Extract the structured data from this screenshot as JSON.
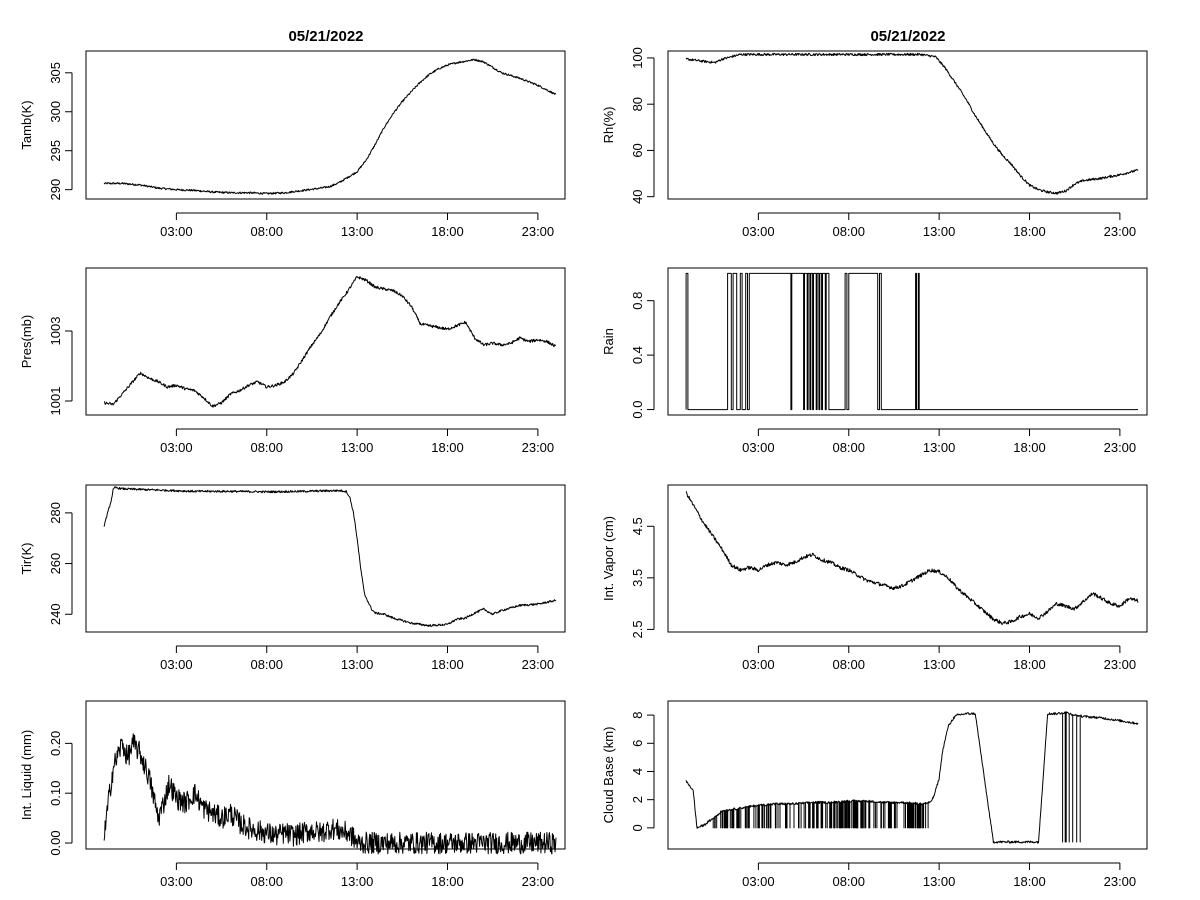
{
  "figure_titles": [
    "05/21/2022",
    "05/21/2022"
  ],
  "chart_data": [
    {
      "type": "line",
      "title": "05/21/2022",
      "xlabel": "",
      "ylabel": "Tamb(K)",
      "xlim": [
        -2,
        24.5
      ],
      "ylim": [
        288.8,
        307.8
      ],
      "xticks": [
        3,
        8,
        13,
        18,
        23
      ],
      "xtick_labels": [
        "03:00",
        "08:00",
        "13:00",
        "18:00",
        "23:00"
      ],
      "yticks": [
        290,
        295,
        300,
        305
      ],
      "ytick_labels": [
        "290",
        "295",
        "300",
        "305"
      ],
      "series": [
        {
          "x": [
            -1,
            0,
            1,
            2,
            3,
            4,
            5,
            6,
            7,
            8,
            9,
            10,
            11,
            11.5,
            12,
            12.5,
            13,
            13.5,
            14,
            14.5,
            15,
            15.5,
            16,
            16.5,
            17,
            17.5,
            18,
            18.5,
            19,
            19.5,
            20,
            20.5,
            21,
            22,
            23,
            24
          ],
          "y": [
            290.8,
            290.8,
            290.6,
            290.2,
            290.0,
            289.9,
            289.7,
            289.6,
            289.6,
            289.5,
            289.6,
            289.9,
            290.2,
            290.4,
            290.9,
            291.6,
            292.3,
            293.8,
            295.8,
            298.0,
            299.8,
            301.3,
            302.6,
            303.8,
            304.8,
            305.5,
            306.0,
            306.3,
            306.5,
            306.7,
            306.4,
            305.7,
            305.0,
            304.3,
            303.4,
            302.2
          ],
          "noise": 0.12
        }
      ]
    },
    {
      "type": "line",
      "title": "05/21/2022",
      "xlabel": "",
      "ylabel": "Rh(%)",
      "xlim": [
        -2,
        24.5
      ],
      "ylim": [
        39,
        103
      ],
      "xticks": [
        3,
        8,
        13,
        18,
        23
      ],
      "xtick_labels": [
        "03:00",
        "08:00",
        "13:00",
        "18:00",
        "23:00"
      ],
      "yticks": [
        40,
        60,
        80,
        100
      ],
      "ytick_labels": [
        "40",
        "60",
        "80",
        "100"
      ],
      "series": [
        {
          "x": [
            -1,
            0,
            0.6,
            1,
            2,
            3,
            6,
            9,
            12,
            12.8,
            13.3,
            14,
            14.5,
            15,
            15.5,
            16,
            16.5,
            17,
            17.5,
            18,
            18.5,
            19,
            19.5,
            20,
            20.5,
            21,
            22,
            23,
            24
          ],
          "y": [
            99.5,
            98.5,
            98.0,
            99.5,
            101.5,
            101.5,
            101.5,
            101.5,
            101.5,
            100.5,
            96,
            88,
            82,
            75,
            69,
            63,
            58,
            54,
            49,
            45,
            43,
            42,
            41.5,
            42.5,
            45.5,
            47,
            48,
            49.5,
            51.5
          ],
          "noise": 0.5
        }
      ]
    },
    {
      "type": "line",
      "title": "",
      "xlabel": "",
      "ylabel": "Pres(mb)",
      "xlim": [
        -2,
        24.5
      ],
      "ylim": [
        1000.6,
        1004.8
      ],
      "xticks": [
        3,
        8,
        13,
        18,
        23
      ],
      "xtick_labels": [
        "03:00",
        "08:00",
        "13:00",
        "18:00",
        "23:00"
      ],
      "yticks": [
        1001,
        1003
      ],
      "ytick_labels": [
        "1001",
        "1003"
      ],
      "series": [
        {
          "x": [
            -1,
            -0.5,
            0,
            0.5,
            1,
            1.5,
            2,
            2.5,
            3,
            3.5,
            4,
            4.5,
            5,
            5.5,
            6,
            6.5,
            7,
            7.5,
            8,
            8.5,
            9,
            9.5,
            10,
            10.5,
            11,
            11.5,
            12,
            12.5,
            13,
            13.5,
            14,
            14.5,
            15,
            15.5,
            16,
            16.5,
            17,
            17.5,
            18,
            18.5,
            19,
            19.5,
            20,
            20.5,
            21,
            21.5,
            22,
            22.5,
            23,
            23.5,
            24
          ],
          "y": [
            1000.95,
            1000.9,
            1001.2,
            1001.5,
            1001.8,
            1001.65,
            1001.55,
            1001.4,
            1001.45,
            1001.35,
            1001.3,
            1001.1,
            1000.85,
            1000.95,
            1001.2,
            1001.3,
            1001.45,
            1001.55,
            1001.4,
            1001.45,
            1001.55,
            1001.8,
            1002.2,
            1002.6,
            1002.95,
            1003.4,
            1003.8,
            1004.15,
            1004.55,
            1004.45,
            1004.25,
            1004.2,
            1004.15,
            1004.0,
            1003.7,
            1003.2,
            1003.15,
            1003.1,
            1003.05,
            1003.15,
            1003.25,
            1002.8,
            1002.6,
            1002.65,
            1002.6,
            1002.65,
            1002.8,
            1002.7,
            1002.75,
            1002.7,
            1002.55
          ],
          "noise": 0.04
        }
      ]
    },
    {
      "type": "line",
      "title": "",
      "xlabel": "",
      "ylabel": "Rain",
      "xlim": [
        -2,
        24.5
      ],
      "ylim": [
        -0.04,
        1.04
      ],
      "xticks": [
        3,
        8,
        13,
        18,
        23
      ],
      "xtick_labels": [
        "03:00",
        "08:00",
        "13:00",
        "18:00",
        "23:00"
      ],
      "yticks": [
        0.0,
        0.4,
        0.8
      ],
      "ytick_labels": [
        "0.0",
        "0.4",
        "0.8"
      ],
      "series": [
        {
          "step": true,
          "segments": [
            [
              -1.0,
              0
            ],
            [
              -1.0,
              1
            ],
            [
              -0.9,
              0
            ],
            [
              1.3,
              1
            ],
            [
              1.5,
              0
            ],
            [
              1.6,
              1
            ],
            [
              1.8,
              0
            ],
            [
              2.0,
              1
            ],
            [
              2.1,
              0
            ],
            [
              2.3,
              1
            ],
            [
              2.4,
              0
            ],
            [
              2.5,
              1
            ],
            [
              4.8,
              0
            ],
            [
              4.85,
              1
            ],
            [
              5.5,
              0
            ],
            [
              5.55,
              1
            ],
            [
              5.7,
              0
            ],
            [
              5.75,
              1
            ],
            [
              5.85,
              0
            ],
            [
              5.9,
              1
            ],
            [
              6.0,
              0
            ],
            [
              6.05,
              1
            ],
            [
              6.2,
              0
            ],
            [
              6.25,
              1
            ],
            [
              6.35,
              0
            ],
            [
              6.4,
              1
            ],
            [
              6.5,
              0
            ],
            [
              6.55,
              1
            ],
            [
              6.7,
              0
            ],
            [
              6.75,
              1
            ],
            [
              6.9,
              0
            ],
            [
              7.8,
              1
            ],
            [
              7.9,
              0
            ],
            [
              8.0,
              1
            ],
            [
              9.6,
              0
            ],
            [
              9.7,
              1
            ],
            [
              9.8,
              0
            ],
            [
              11.7,
              1
            ],
            [
              11.75,
              0
            ],
            [
              11.85,
              1
            ],
            [
              11.9,
              0
            ],
            [
              24.0,
              0
            ]
          ]
        }
      ]
    },
    {
      "type": "line",
      "title": "",
      "xlabel": "",
      "ylabel": "Tir(K)",
      "xlim": [
        -2,
        24.5
      ],
      "ylim": [
        233,
        291
      ],
      "xticks": [
        3,
        8,
        13,
        18,
        23
      ],
      "xtick_labels": [
        "03:00",
        "08:00",
        "13:00",
        "18:00",
        "23:00"
      ],
      "yticks": [
        240,
        260,
        280
      ],
      "ytick_labels": [
        "240",
        "260",
        "280"
      ],
      "series": [
        {
          "x": [
            -1,
            -0.8,
            -0.6,
            -0.5,
            -0.4,
            0,
            2,
            4,
            6,
            8,
            10,
            12,
            12.4,
            12.6,
            12.8,
            13,
            13.2,
            13.4,
            13.6,
            13.8,
            14,
            14.5,
            15,
            16,
            17,
            18,
            18.5,
            19,
            19.5,
            20,
            20.5,
            21,
            22,
            23,
            24
          ],
          "y": [
            275,
            280,
            285,
            289,
            290,
            289.5,
            289,
            288.5,
            288.5,
            288.3,
            288.5,
            288.8,
            288.5,
            286,
            280,
            270,
            258,
            248,
            245,
            242,
            240.5,
            240,
            238.5,
            236.5,
            235.5,
            236,
            238,
            238.5,
            240.5,
            242,
            240,
            241.5,
            243.5,
            244,
            245.5
          ],
          "noise": 0.4
        }
      ]
    },
    {
      "type": "line",
      "title": "",
      "xlabel": "",
      "ylabel": "Int. Vapor (cm)",
      "xlim": [
        -2,
        24.5
      ],
      "ylim": [
        2.45,
        5.3
      ],
      "xticks": [
        3,
        8,
        13,
        18,
        23
      ],
      "xtick_labels": [
        "03:00",
        "08:00",
        "13:00",
        "18:00",
        "23:00"
      ],
      "yticks": [
        2.5,
        3.5,
        4.5
      ],
      "ytick_labels": [
        "2.5",
        "3.5",
        "4.5"
      ],
      "series": [
        {
          "x": [
            -1,
            -0.5,
            0,
            0.5,
            1,
            1.5,
            2,
            2.5,
            3,
            3.5,
            4,
            4.5,
            5,
            5.5,
            6,
            6.5,
            7,
            7.5,
            8,
            8.5,
            9,
            9.5,
            10,
            10.5,
            11,
            11.5,
            12,
            12.5,
            13,
            13.5,
            14,
            14.5,
            15,
            15.5,
            16,
            16.5,
            17,
            17.5,
            18,
            18.5,
            19,
            19.5,
            20,
            20.5,
            21,
            21.5,
            22,
            22.5,
            23,
            23.5,
            24
          ],
          "y": [
            5.15,
            4.85,
            4.55,
            4.3,
            4.05,
            3.75,
            3.65,
            3.7,
            3.65,
            3.75,
            3.8,
            3.75,
            3.8,
            3.9,
            3.95,
            3.85,
            3.8,
            3.7,
            3.65,
            3.55,
            3.45,
            3.4,
            3.35,
            3.3,
            3.35,
            3.45,
            3.55,
            3.65,
            3.62,
            3.5,
            3.3,
            3.15,
            3.0,
            2.85,
            2.7,
            2.62,
            2.65,
            2.75,
            2.8,
            2.72,
            2.85,
            3.0,
            2.95,
            2.9,
            3.05,
            3.2,
            3.1,
            3.0,
            2.95,
            3.1,
            3.05
          ],
          "noise": 0.035
        }
      ]
    },
    {
      "type": "line",
      "title": "",
      "xlabel": "",
      "ylabel": "Int. Liquid (mm)",
      "xlim": [
        -2,
        24.5
      ],
      "ylim": [
        -0.012,
        0.285
      ],
      "xticks": [
        3,
        8,
        13,
        18,
        23
      ],
      "xtick_labels": [
        "03:00",
        "08:00",
        "13:00",
        "18:00",
        "23:00"
      ],
      "yticks": [
        0.0,
        0.1,
        0.2
      ],
      "ytick_labels": [
        "0.00",
        "0.10",
        "0.20"
      ],
      "series": [
        {
          "x": [
            -1,
            -0.7,
            -0.5,
            -0.2,
            0,
            0.3,
            0.6,
            1,
            1.5,
            2,
            2.3,
            2.6,
            3,
            3.5,
            4,
            4.5,
            5,
            5.5,
            6,
            6.5,
            7,
            7.5,
            8,
            8.5,
            9,
            9.5,
            10,
            10.5,
            11,
            11.5,
            12,
            12.5,
            12.7,
            13,
            24
          ],
          "y": [
            0.01,
            0.1,
            0.15,
            0.18,
            0.2,
            0.17,
            0.2,
            0.18,
            0.13,
            0.05,
            0.08,
            0.12,
            0.09,
            0.08,
            0.1,
            0.07,
            0.06,
            0.05,
            0.06,
            0.04,
            0.03,
            0.025,
            0.02,
            0.015,
            0.02,
            0.015,
            0.02,
            0.025,
            0.02,
            0.03,
            0.025,
            0.02,
            0.015,
            0.0,
            0.0
          ],
          "noise": 0.022
        }
      ]
    },
    {
      "type": "line",
      "title": "",
      "xlabel": "",
      "ylabel": "Cloud Base (km)",
      "xlim": [
        -2,
        24.5
      ],
      "ylim": [
        -1.5,
        9.0
      ],
      "xticks": [
        3,
        8,
        13,
        18,
        23
      ],
      "xtick_labels": [
        "03:00",
        "08:00",
        "13:00",
        "18:00",
        "23:00"
      ],
      "yticks": [
        0,
        2,
        4,
        6,
        8
      ],
      "ytick_labels": [
        "0",
        "2",
        "4",
        "6",
        "8"
      ],
      "series": [
        {
          "spiky": true,
          "x": [
            -1,
            -0.8,
            -0.6,
            -0.4,
            0,
            1,
            2,
            3,
            4,
            5,
            6,
            7,
            8,
            9,
            10,
            11,
            12,
            12.5,
            12.7,
            13,
            13.2,
            13.5,
            13.8,
            14,
            14.5,
            15,
            16,
            17,
            18,
            18.3,
            18.5,
            19,
            19.5,
            20,
            20.5,
            21,
            22,
            23,
            24
          ],
          "y": [
            3.3,
            3.0,
            2.6,
            0.0,
            0.2,
            1.2,
            1.4,
            1.6,
            1.7,
            1.7,
            1.8,
            1.8,
            1.9,
            1.9,
            1.8,
            1.8,
            1.7,
            1.8,
            2.2,
            3.5,
            5.5,
            7.2,
            7.8,
            8.0,
            8.1,
            8.1,
            -1.0,
            -1.0,
            -1.0,
            -1.0,
            -1.0,
            8.1,
            8.1,
            8.2,
            8.0,
            7.9,
            7.8,
            7.6,
            7.4
          ],
          "noise": 0.08
        }
      ]
    }
  ]
}
